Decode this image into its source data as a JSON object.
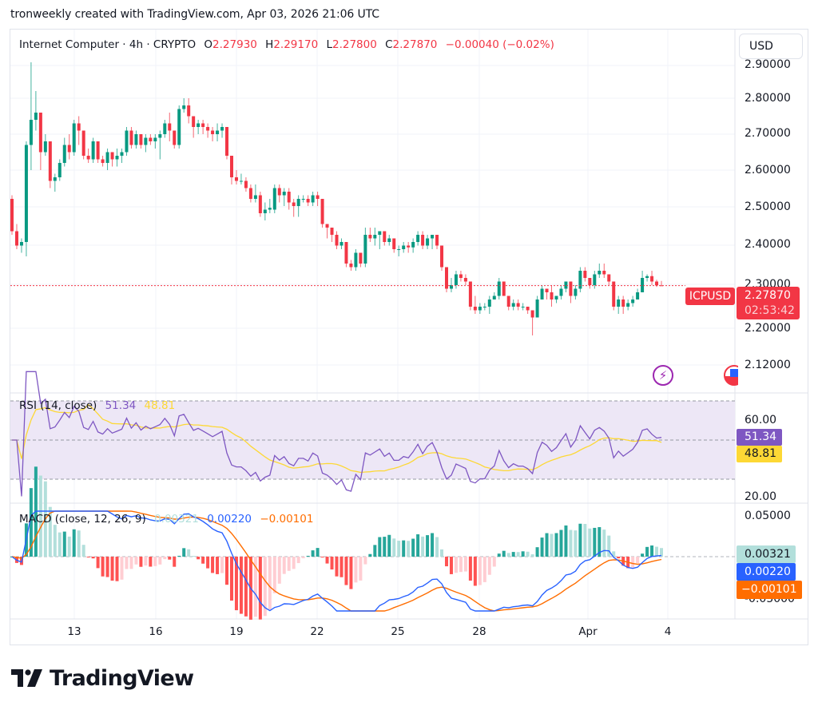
{
  "credit": "tronweekly created with TradingView.com, Apr 03, 2026 21:06 UTC",
  "header": {
    "symbol_name": "Internet Computer · 4h · CRYPTO",
    "open_label": "O",
    "open": "2.27930",
    "high_label": "H",
    "high": "2.29170",
    "low_label": "L",
    "low": "2.27800",
    "close_label": "C",
    "close": "2.27870",
    "change": "−0.00040 (−0.02%)",
    "currency_button": "USD"
  },
  "price_axis": {
    "labels": [
      "2.90000",
      "2.80000",
      "2.70000",
      "2.60000",
      "2.50000",
      "2.40000",
      "2.30000",
      "2.20000",
      "2.12000"
    ],
    "symbol_tag": "ICPUSD",
    "last_price": "2.27870",
    "countdown": "02:53:42"
  },
  "rsi": {
    "title": "RSI (14, close)",
    "value": "51.34",
    "ma_value": "48.81",
    "axis_labels": [
      "60.00",
      "20.00"
    ],
    "colors": {
      "rsi": "#7e57c2",
      "ma": "#fdd835",
      "band": "#ede7f6"
    }
  },
  "macd": {
    "title": "MACD (close, 12, 26, 9)",
    "histogram": "0.00321",
    "macd": "0.00220",
    "signal": "−0.00101",
    "axis_labels": [
      "0.05000",
      "-0.05000"
    ],
    "colors": {
      "histogram": "#b2dfdb",
      "macd": "#2962ff",
      "signal": "#ff6d00"
    }
  },
  "time_axis": {
    "labels": [
      "13",
      "16",
      "19",
      "22",
      "25",
      "28",
      "Apr",
      "4"
    ]
  },
  "logo": {
    "text": "TradingView"
  },
  "colors": {
    "up": "#089981",
    "down": "#f23645",
    "grid": "#f0f3fa"
  },
  "chart_data": {
    "type": "candlestick",
    "title": "Internet Computer · 4h · CRYPTO (ICPUSD)",
    "xlabel": "",
    "ylabel": "USD",
    "ylim": [
      2.1,
      2.92
    ],
    "x_ticks": [
      "13",
      "16",
      "19",
      "22",
      "25",
      "28",
      "Apr",
      "4"
    ],
    "y_ticks": [
      2.12,
      2.2,
      2.3,
      2.4,
      2.5,
      2.6,
      2.7,
      2.8,
      2.9
    ],
    "last": {
      "open": 2.2793,
      "high": 2.2917,
      "low": 2.278,
      "close": 2.2787,
      "change": -0.0004,
      "change_pct": -0.02
    },
    "ohlc_approx": [
      [
        2.52,
        2.53,
        2.42,
        2.43
      ],
      [
        2.43,
        2.45,
        2.38,
        2.39
      ],
      [
        2.39,
        2.41,
        2.37,
        2.4
      ],
      [
        2.4,
        2.68,
        2.36,
        2.67
      ],
      [
        2.67,
        2.9,
        2.6,
        2.74
      ],
      [
        2.74,
        2.82,
        2.71,
        2.76
      ],
      [
        2.76,
        2.76,
        2.6,
        2.65
      ],
      [
        2.65,
        2.7,
        2.64,
        2.68
      ],
      [
        2.68,
        2.68,
        2.55,
        2.57
      ],
      [
        2.57,
        2.59,
        2.54,
        2.58
      ],
      [
        2.58,
        2.63,
        2.57,
        2.62
      ],
      [
        2.62,
        2.69,
        2.61,
        2.67
      ],
      [
        2.67,
        2.7,
        2.63,
        2.65
      ],
      [
        2.65,
        2.74,
        2.64,
        2.73
      ],
      [
        2.73,
        2.75,
        2.67,
        2.71
      ],
      [
        2.71,
        2.71,
        2.63,
        2.64
      ],
      [
        2.64,
        2.66,
        2.62,
        2.63
      ],
      [
        2.63,
        2.69,
        2.62,
        2.68
      ],
      [
        2.68,
        2.68,
        2.62,
        2.63
      ],
      [
        2.63,
        2.64,
        2.61,
        2.62
      ],
      [
        2.62,
        2.66,
        2.6,
        2.65
      ],
      [
        2.65,
        2.65,
        2.61,
        2.63
      ],
      [
        2.63,
        2.66,
        2.61,
        2.64
      ],
      [
        2.64,
        2.66,
        2.62,
        2.65
      ],
      [
        2.65,
        2.72,
        2.64,
        2.71
      ],
      [
        2.71,
        2.72,
        2.66,
        2.67
      ],
      [
        2.67,
        2.71,
        2.66,
        2.7
      ],
      [
        2.7,
        2.7,
        2.66,
        2.67
      ],
      [
        2.67,
        2.7,
        2.65,
        2.69
      ],
      [
        2.69,
        2.7,
        2.67,
        2.68
      ],
      [
        2.68,
        2.7,
        2.66,
        2.69
      ],
      [
        2.69,
        2.71,
        2.63,
        2.7
      ],
      [
        2.7,
        2.74,
        2.69,
        2.73
      ],
      [
        2.73,
        2.76,
        2.68,
        2.71
      ],
      [
        2.71,
        2.71,
        2.66,
        2.67
      ],
      [
        2.67,
        2.78,
        2.66,
        2.77
      ],
      [
        2.77,
        2.8,
        2.76,
        2.78
      ],
      [
        2.78,
        2.8,
        2.73,
        2.75
      ],
      [
        2.75,
        2.75,
        2.69,
        2.72
      ],
      [
        2.72,
        2.74,
        2.7,
        2.73
      ],
      [
        2.73,
        2.74,
        2.7,
        2.72
      ],
      [
        2.72,
        2.73,
        2.69,
        2.71
      ],
      [
        2.71,
        2.72,
        2.68,
        2.7
      ],
      [
        2.7,
        2.73,
        2.68,
        2.71
      ],
      [
        2.71,
        2.73,
        2.69,
        2.72
      ],
      [
        2.72,
        2.72,
        2.63,
        2.64
      ],
      [
        2.64,
        2.64,
        2.56,
        2.58
      ],
      [
        2.58,
        2.6,
        2.56,
        2.57
      ],
      [
        2.57,
        2.59,
        2.56,
        2.57
      ],
      [
        2.57,
        2.58,
        2.54,
        2.55
      ],
      [
        2.55,
        2.56,
        2.51,
        2.52
      ],
      [
        2.52,
        2.56,
        2.51,
        2.53
      ],
      [
        2.53,
        2.54,
        2.47,
        2.48
      ],
      [
        2.48,
        2.51,
        2.46,
        2.49
      ],
      [
        2.49,
        2.52,
        2.48,
        2.495
      ],
      [
        2.49,
        2.56,
        2.48,
        2.55
      ],
      [
        2.55,
        2.56,
        2.51,
        2.53
      ],
      [
        2.53,
        2.55,
        2.5,
        2.54
      ],
      [
        2.54,
        2.55,
        2.49,
        2.51
      ],
      [
        2.51,
        2.52,
        2.47,
        2.5
      ],
      [
        2.5,
        2.53,
        2.47,
        2.52
      ],
      [
        2.52,
        2.53,
        2.51,
        2.52
      ],
      [
        2.52,
        2.53,
        2.5,
        2.51
      ],
      [
        2.51,
        2.54,
        2.5,
        2.53
      ],
      [
        2.53,
        2.54,
        2.5,
        2.52
      ],
      [
        2.52,
        2.52,
        2.44,
        2.45
      ],
      [
        2.45,
        2.45,
        2.41,
        2.44
      ],
      [
        2.44,
        2.44,
        2.4,
        2.42
      ],
      [
        2.42,
        2.43,
        2.38,
        2.39
      ],
      [
        2.39,
        2.41,
        2.38,
        2.4
      ],
      [
        2.4,
        2.4,
        2.33,
        2.34
      ],
      [
        2.34,
        2.35,
        2.32,
        2.33
      ],
      [
        2.33,
        2.38,
        2.32,
        2.37
      ],
      [
        2.37,
        2.37,
        2.33,
        2.34
      ],
      [
        2.34,
        2.44,
        2.33,
        2.42
      ],
      [
        2.42,
        2.44,
        2.4,
        2.41
      ],
      [
        2.41,
        2.44,
        2.39,
        2.42
      ],
      [
        2.42,
        2.43,
        2.38,
        2.43
      ],
      [
        2.43,
        2.43,
        2.39,
        2.4
      ],
      [
        2.4,
        2.42,
        2.39,
        2.41
      ],
      [
        2.41,
        2.41,
        2.37,
        2.38
      ],
      [
        2.38,
        2.39,
        2.36,
        2.38
      ],
      [
        2.38,
        2.4,
        2.37,
        2.39
      ],
      [
        2.39,
        2.4,
        2.37,
        2.385
      ],
      [
        2.385,
        2.41,
        2.37,
        2.4
      ],
      [
        2.4,
        2.43,
        2.39,
        2.42
      ],
      [
        2.42,
        2.43,
        2.38,
        2.39
      ],
      [
        2.39,
        2.42,
        2.38,
        2.41
      ],
      [
        2.41,
        2.42,
        2.38,
        2.42
      ],
      [
        2.42,
        2.42,
        2.38,
        2.39
      ],
      [
        2.39,
        2.39,
        2.32,
        2.33
      ],
      [
        2.33,
        2.33,
        2.26,
        2.27
      ],
      [
        2.27,
        2.3,
        2.26,
        2.28
      ],
      [
        2.28,
        2.32,
        2.27,
        2.31
      ],
      [
        2.31,
        2.32,
        2.29,
        2.3
      ],
      [
        2.3,
        2.31,
        2.28,
        2.29
      ],
      [
        2.29,
        2.29,
        2.21,
        2.22
      ],
      [
        2.22,
        2.25,
        2.2,
        2.21
      ],
      [
        2.21,
        2.23,
        2.2,
        2.22
      ],
      [
        2.22,
        2.23,
        2.21,
        2.22
      ],
      [
        2.22,
        2.25,
        2.2,
        2.24
      ],
      [
        2.24,
        2.26,
        2.24,
        2.25
      ],
      [
        2.25,
        2.3,
        2.24,
        2.29
      ],
      [
        2.29,
        2.29,
        2.25,
        2.25
      ],
      [
        2.25,
        2.25,
        2.21,
        2.22
      ],
      [
        2.22,
        2.24,
        2.21,
        2.23
      ],
      [
        2.23,
        2.24,
        2.21,
        2.22
      ],
      [
        2.22,
        2.23,
        2.21,
        2.22
      ],
      [
        2.22,
        2.22,
        2.2,
        2.21
      ],
      [
        2.21,
        2.21,
        2.14,
        2.19
      ],
      [
        2.19,
        2.25,
        2.19,
        2.24
      ],
      [
        2.24,
        2.28,
        2.24,
        2.27
      ],
      [
        2.27,
        2.27,
        2.24,
        2.26
      ],
      [
        2.26,
        2.28,
        2.22,
        2.24
      ],
      [
        2.24,
        2.25,
        2.23,
        2.25
      ],
      [
        2.25,
        2.28,
        2.24,
        2.27
      ],
      [
        2.27,
        2.29,
        2.26,
        2.29
      ],
      [
        2.29,
        2.29,
        2.23,
        2.25
      ],
      [
        2.25,
        2.28,
        2.24,
        2.27
      ],
      [
        2.27,
        2.33,
        2.26,
        2.32
      ],
      [
        2.32,
        2.33,
        2.29,
        2.3
      ],
      [
        2.3,
        2.3,
        2.27,
        2.28
      ],
      [
        2.28,
        2.32,
        2.27,
        2.31
      ],
      [
        2.31,
        2.34,
        2.3,
        2.32
      ],
      [
        2.32,
        2.34,
        2.3,
        2.31
      ],
      [
        2.31,
        2.31,
        2.28,
        2.29
      ],
      [
        2.29,
        2.29,
        2.21,
        2.22
      ],
      [
        2.22,
        2.25,
        2.2,
        2.24
      ],
      [
        2.24,
        2.25,
        2.2,
        2.22
      ],
      [
        2.22,
        2.24,
        2.21,
        2.23
      ],
      [
        2.23,
        2.25,
        2.22,
        2.24
      ],
      [
        2.24,
        2.27,
        2.24,
        2.26
      ],
      [
        2.26,
        2.32,
        2.26,
        2.3
      ],
      [
        2.3,
        2.31,
        2.29,
        2.305
      ],
      [
        2.305,
        2.32,
        2.28,
        2.29
      ],
      [
        2.29,
        2.295,
        2.275,
        2.2793
      ],
      [
        2.2793,
        2.2917,
        2.278,
        2.2787
      ]
    ],
    "rsi_series": {
      "rsi_last": 51.34,
      "rsi_ma_last": 48.81,
      "bands": [
        30,
        50,
        70
      ],
      "axis_ticks": [
        20,
        60
      ]
    },
    "macd_series": {
      "histogram_last": 0.00321,
      "macd_last": 0.0022,
      "signal_last": -0.00101,
      "axis_ticks": [
        0.05,
        -0.05
      ]
    }
  }
}
